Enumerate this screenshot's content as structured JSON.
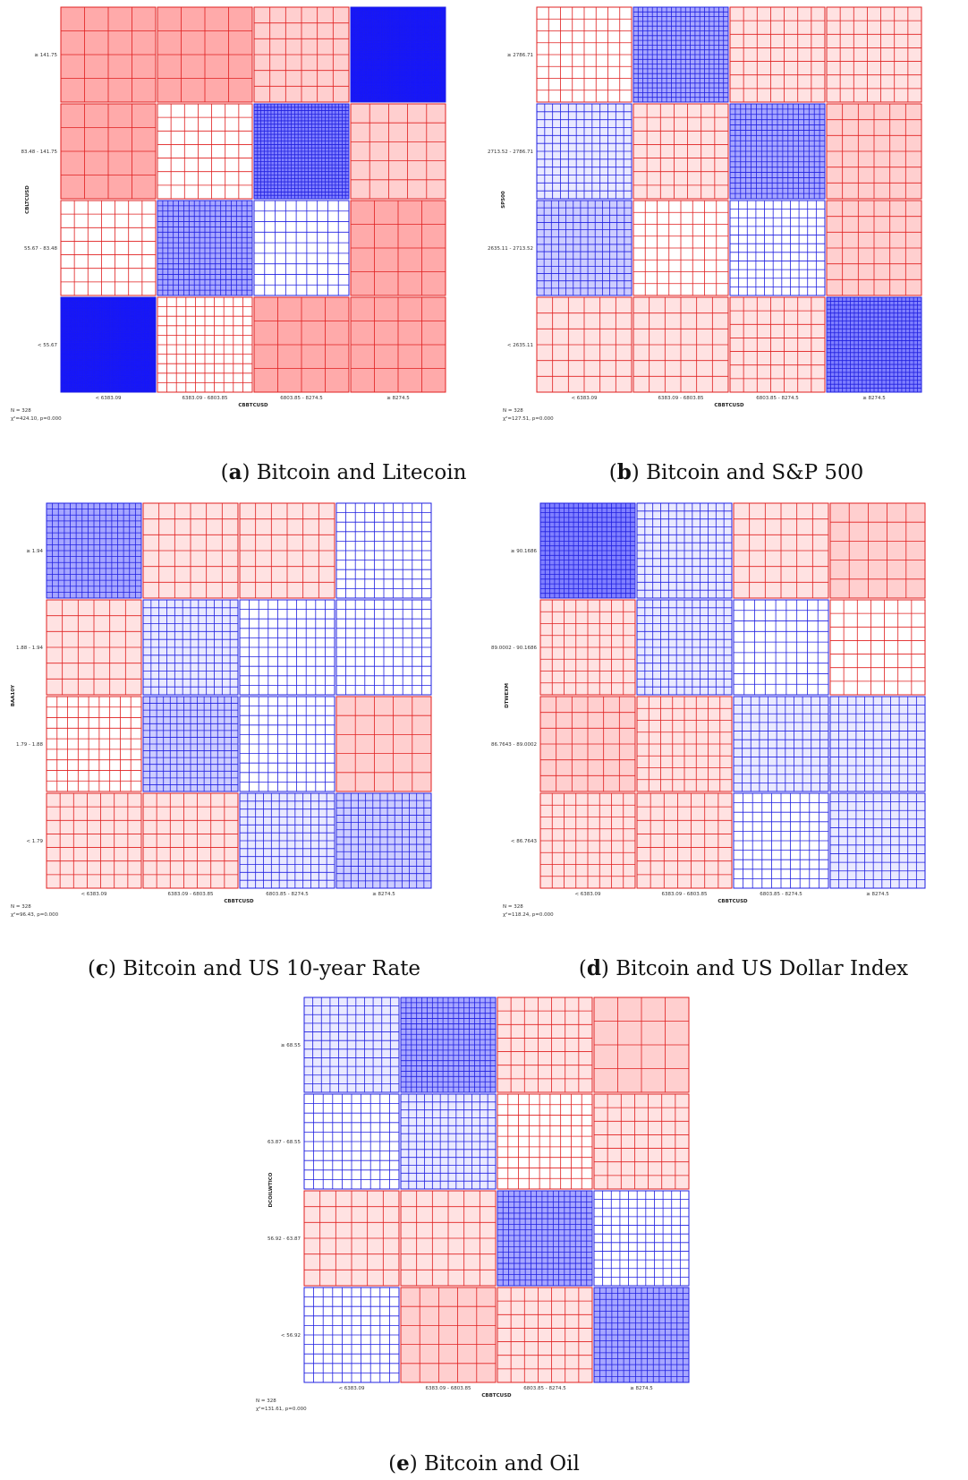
{
  "chart_data": [
    {
      "type": "heatmap",
      "subtype": "mosaic",
      "caption_letter": "a",
      "caption_text": "Bitcoin and Litecoin",
      "xlabel": "CBBTCUSD",
      "ylabel": "CBLTCUSD",
      "x_categories": [
        "< 6383.09",
        "6383.09 - 6803.85",
        "6803.85 - 8274.5",
        "≥ 8274.5"
      ],
      "y_categories": [
        "≥ 141.75",
        "83.48 - 141.75",
        "55.67 - 83.48",
        "< 55.67"
      ],
      "residual_sign": [
        [
          1,
          1,
          1,
          -1
        ],
        [
          1,
          1,
          -1,
          1
        ],
        [
          1,
          -1,
          -1,
          1
        ],
        [
          -1,
          1,
          1,
          1
        ]
      ],
      "residual_level": [
        [
          3,
          3,
          2,
          5
        ],
        [
          3,
          0,
          4,
          2
        ],
        [
          0,
          3,
          0,
          3
        ],
        [
          5,
          0,
          3,
          3
        ]
      ],
      "grid_density": [
        [
          4,
          4,
          6,
          48
        ],
        [
          4,
          7,
          28,
          5
        ],
        [
          7,
          18,
          9,
          4
        ],
        [
          48,
          10,
          4,
          4
        ]
      ],
      "n_text": "N = 328",
      "stat_text": "χ²=424.10, p=0.000"
    },
    {
      "type": "heatmap",
      "subtype": "mosaic",
      "caption_letter": "b",
      "caption_text": "Bitcoin and S&P 500",
      "xlabel": "CBBTCUSD",
      "ylabel": "SP500",
      "x_categories": [
        "< 6383.09",
        "6383.09 - 6803.85",
        "6803.85 - 8274.5",
        "≥ 8274.5"
      ],
      "y_categories": [
        "≥ 2786.71",
        "2713.52 - 2786.71",
        "2635.11 - 2713.52",
        "< 2635.11"
      ],
      "residual_sign": [
        [
          1,
          -1,
          1,
          1
        ],
        [
          -1,
          1,
          -1,
          1
        ],
        [
          -1,
          1,
          -1,
          1
        ],
        [
          1,
          1,
          1,
          -1
        ]
      ],
      "residual_level": [
        [
          0,
          3,
          1,
          1
        ],
        [
          1,
          1,
          3,
          2
        ],
        [
          2,
          0,
          0,
          2
        ],
        [
          1,
          1,
          1,
          4
        ]
      ],
      "grid_density": [
        [
          8,
          20,
          7,
          7
        ],
        [
          12,
          7,
          18,
          6
        ],
        [
          13,
          8,
          11,
          6
        ],
        [
          6,
          6,
          7,
          24
        ]
      ],
      "n_text": "N = 328",
      "stat_text": "χ²=127.51, p=0.000"
    },
    {
      "type": "heatmap",
      "subtype": "mosaic",
      "caption_letter": "c",
      "caption_text": "Bitcoin and US 10-year Rate",
      "xlabel": "CBBTCUSD",
      "ylabel": "BAA10Y",
      "x_categories": [
        "< 6383.09",
        "6383.09 - 6803.85",
        "6803.85 - 8274.5",
        "≥ 8274.5"
      ],
      "y_categories": [
        "≥ 1.94",
        "1.88 - 1.94",
        "1.79 - 1.88",
        "< 1.79"
      ],
      "residual_sign": [
        [
          -1,
          1,
          1,
          -1
        ],
        [
          1,
          -1,
          -1,
          -1
        ],
        [
          1,
          -1,
          -1,
          1
        ],
        [
          1,
          1,
          -1,
          -1
        ]
      ],
      "residual_level": [
        [
          3,
          1,
          1,
          0
        ],
        [
          1,
          1,
          0,
          0
        ],
        [
          0,
          2,
          0,
          2
        ],
        [
          1,
          1,
          1,
          2
        ]
      ],
      "grid_density": [
        [
          16,
          6,
          6,
          10
        ],
        [
          6,
          12,
          10,
          10
        ],
        [
          9,
          14,
          10,
          5
        ],
        [
          7,
          7,
          12,
          13
        ]
      ],
      "n_text": "N = 328",
      "stat_text": "χ²=96.43, p=0.000"
    },
    {
      "type": "heatmap",
      "subtype": "mosaic",
      "caption_letter": "d",
      "caption_text": "Bitcoin and US Dollar Index",
      "xlabel": "CBBTCUSD",
      "ylabel": "DTWEXM",
      "x_categories": [
        "< 6383.09",
        "6383.09 - 6803.85",
        "6803.85 - 8274.5",
        "≥ 8274.5"
      ],
      "y_categories": [
        "≥ 90.1686",
        "89.0002 - 90.1686",
        "86.7643 - 89.0002",
        "< 86.7643"
      ],
      "residual_sign": [
        [
          -1,
          -1,
          1,
          1
        ],
        [
          1,
          -1,
          -1,
          1
        ],
        [
          1,
          1,
          -1,
          -1
        ],
        [
          1,
          1,
          -1,
          -1
        ]
      ],
      "residual_level": [
        [
          4,
          1,
          1,
          2
        ],
        [
          1,
          1,
          0,
          0
        ],
        [
          2,
          1,
          1,
          1
        ],
        [
          1,
          1,
          0,
          1
        ]
      ],
      "grid_density": [
        [
          20,
          12,
          6,
          5
        ],
        [
          8,
          12,
          9,
          7
        ],
        [
          6,
          8,
          11,
          11
        ],
        [
          8,
          7,
          10,
          11
        ]
      ],
      "n_text": "N = 328",
      "stat_text": "χ²=118.24, p=0.000"
    },
    {
      "type": "heatmap",
      "subtype": "mosaic",
      "caption_letter": "e",
      "caption_text": "Bitcoin and Oil",
      "xlabel": "CBBTCUSD",
      "ylabel": "DCOILWTICO",
      "x_categories": [
        "< 6383.09",
        "6383.09 - 6803.85",
        "6803.85 - 8274.5",
        "≥ 8274.5"
      ],
      "y_categories": [
        "≥ 68.55",
        "63.87 - 68.55",
        "56.92 - 63.87",
        "< 56.92"
      ],
      "residual_sign": [
        [
          -1,
          -1,
          1,
          1
        ],
        [
          -1,
          -1,
          1,
          1
        ],
        [
          1,
          1,
          -1,
          -1
        ],
        [
          -1,
          1,
          1,
          -1
        ]
      ],
      "residual_level": [
        [
          1,
          3,
          1,
          2
        ],
        [
          0,
          1,
          0,
          1
        ],
        [
          1,
          1,
          3,
          0
        ],
        [
          0,
          2,
          1,
          3
        ]
      ],
      "grid_density": [
        [
          11,
          18,
          7,
          4
        ],
        [
          10,
          12,
          9,
          7
        ],
        [
          6,
          6,
          17,
          11
        ],
        [
          10,
          5,
          7,
          16
        ]
      ],
      "n_text": "N = 328",
      "stat_text": "χ²=131.61, p=0.000"
    }
  ]
}
